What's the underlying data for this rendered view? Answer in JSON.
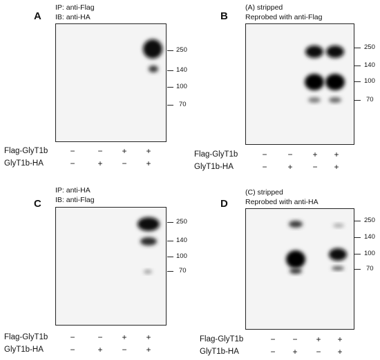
{
  "panels": [
    {
      "letter": "A",
      "condition_lines": [
        "IP: anti-Flag",
        "IB: anti-HA"
      ],
      "markers": [
        "250",
        "140",
        "100",
        "70"
      ],
      "rows": [
        {
          "label": "Flag-GlyT1b",
          "signs": [
            "−",
            "−",
            "+",
            "+"
          ]
        },
        {
          "label": "GlyT1b-HA",
          "signs": [
            "−",
            "+",
            "−",
            "+"
          ]
        }
      ]
    },
    {
      "letter": "B",
      "condition_lines": [
        "(A) stripped",
        "Reprobed with anti-Flag"
      ],
      "markers": [
        "250",
        "140",
        "100",
        "70"
      ],
      "rows": [
        {
          "label": "Flag-GlyT1b",
          "signs": [
            "−",
            "−",
            "+",
            "+"
          ]
        },
        {
          "label": "GlyT1b-HA",
          "signs": [
            "−",
            "+",
            "−",
            "+"
          ]
        }
      ]
    },
    {
      "letter": "C",
      "condition_lines": [
        "IP: anti-HA",
        "IB: anti-Flag"
      ],
      "markers": [
        "250",
        "140",
        "100",
        "70"
      ],
      "rows": [
        {
          "label": "Flag-GlyT1b",
          "signs": [
            "−",
            "−",
            "+",
            "+"
          ]
        },
        {
          "label": "GlyT1b-HA",
          "signs": [
            "−",
            "+",
            "−",
            "+"
          ]
        }
      ]
    },
    {
      "letter": "D",
      "condition_lines": [
        "(C) stripped",
        "Reprobed with anti-HA"
      ],
      "markers": [
        "250",
        "140",
        "100",
        "70"
      ],
      "rows": [
        {
          "label": "Flag-GlyT1b",
          "signs": [
            "−",
            "−",
            "+",
            "+"
          ]
        },
        {
          "label": "GlyT1b-HA",
          "signs": [
            "−",
            "+",
            "−",
            "+"
          ]
        }
      ]
    }
  ]
}
